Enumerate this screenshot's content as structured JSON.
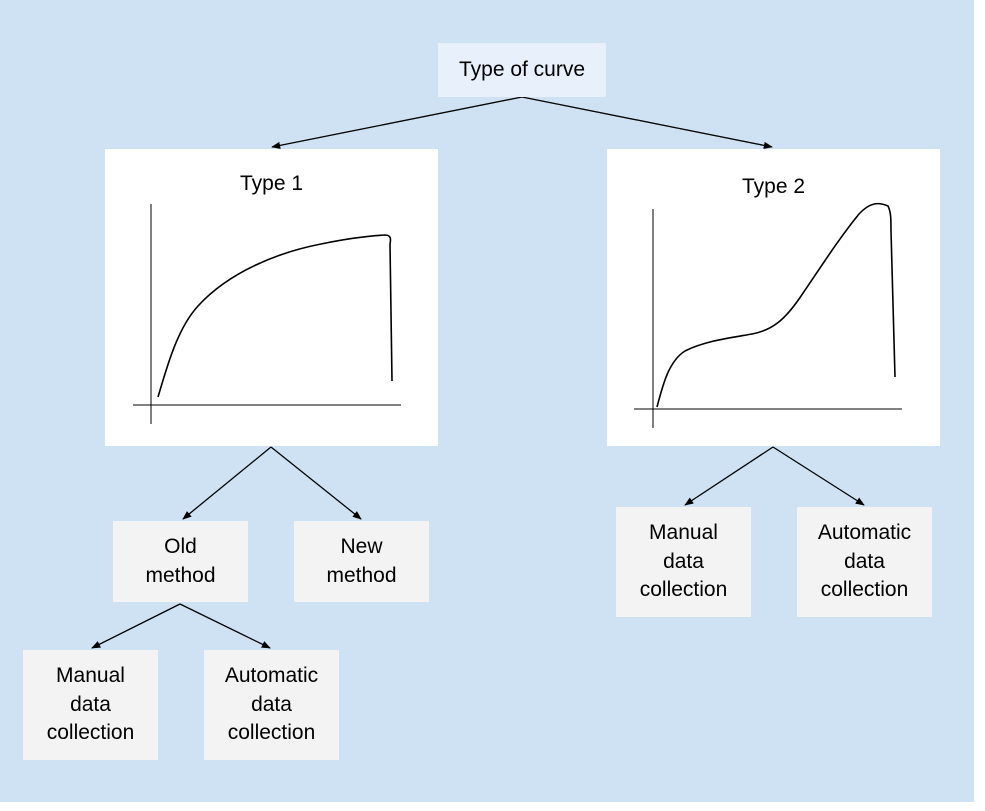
{
  "colors": {
    "background": "#cfe2f3",
    "root_box": "#e8f1fb",
    "leaf_box": "#f3f3f3",
    "panel": "#ffffff",
    "stroke": "#000000"
  },
  "root": {
    "label": "Type of curve"
  },
  "type1": {
    "title": "Type 1",
    "children": {
      "old_method": {
        "label": "Old\nmethod",
        "children": {
          "manual": "Manual\ndata\ncollection",
          "automatic": "Automatic\ndata\ncollection"
        }
      },
      "new_method": {
        "label": "New\nmethod"
      }
    }
  },
  "type2": {
    "title": "Type 2",
    "children": {
      "manual": "Manual\ndata\ncollection",
      "automatic": "Automatic\ndata\ncollection"
    }
  }
}
